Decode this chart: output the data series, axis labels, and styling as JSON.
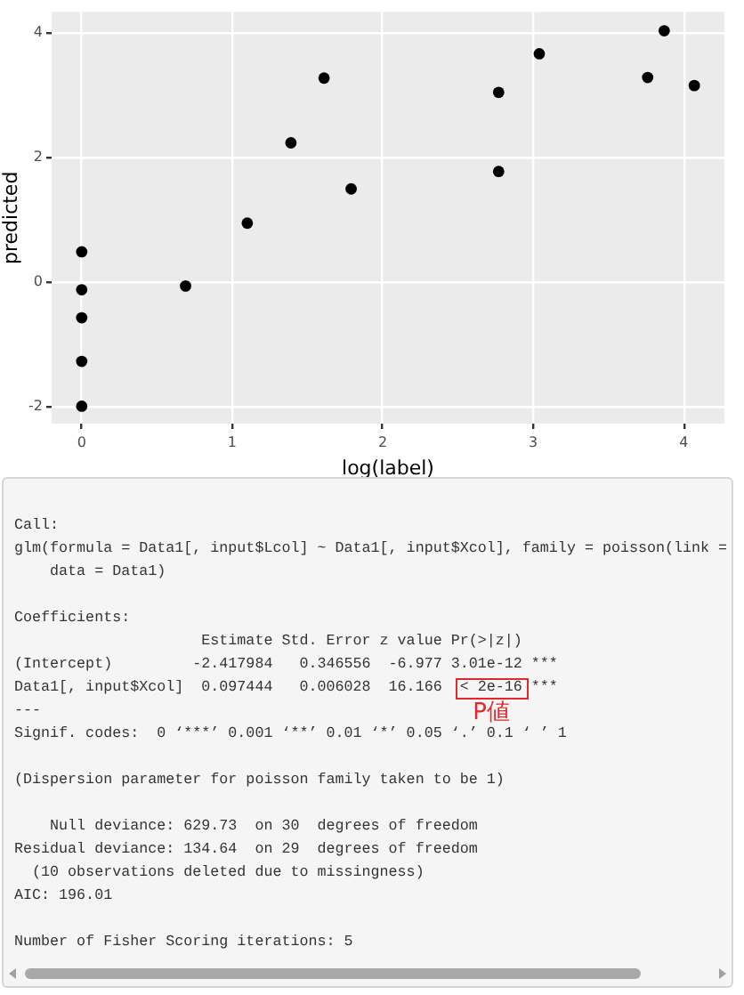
{
  "chart_data": {
    "type": "scatter",
    "xlabel": "log(label)",
    "ylabel": "predicted",
    "x": [
      0,
      0,
      0,
      0,
      0,
      0.69,
      1.1,
      1.39,
      1.61,
      1.79,
      2.77,
      2.77,
      3.04,
      3.76,
      3.87,
      4.07
    ],
    "values": [
      0.48,
      -0.13,
      -0.58,
      -1.28,
      -2.0,
      -0.07,
      0.94,
      2.23,
      3.27,
      1.49,
      3.04,
      1.77,
      3.66,
      3.28,
      4.03,
      3.15
    ],
    "color": "#000000",
    "marker": "circle",
    "grid": true,
    "xlim": [
      -0.2,
      4.27
    ],
    "ylim": [
      -2.28,
      4.33
    ],
    "xticks": [
      0,
      1,
      2,
      3,
      4
    ],
    "yticks": [
      -2,
      0,
      2,
      4
    ],
    "annotations": [
      "Call:\nglm(formula = Data1[, input$Lcol] ~ Data1[, input$Xcol], family = poisson(link =\n    data = Data1)",
      "Coefficients:\n                     Estimate Std. Error z value Pr(>|z|)\n(Intercept)         -2.417984   0.346556  -6.977 3.01e-12 ***\nData1[, input$Xcol]  0.097444   0.006028  16.166  < 2e-16 ***\n---\nSignif. codes:  0 ‘***’ 0.001 ‘**’ 0.01 ‘*’ 0.05 ‘.’ 0.1 ‘ ’ 1",
      "(Dispersion parameter for poisson family taken to be 1)",
      "    Null deviance: 629.73  on 30  degrees of freedom\nResidual deviance: 134.64  on 29  degrees of freedom\n  (10 observations deleted due to missingness)\nAIC: 196.01",
      "Number of Fisher Scoring iterations: 5",
      "P値"
    ]
  }
}
